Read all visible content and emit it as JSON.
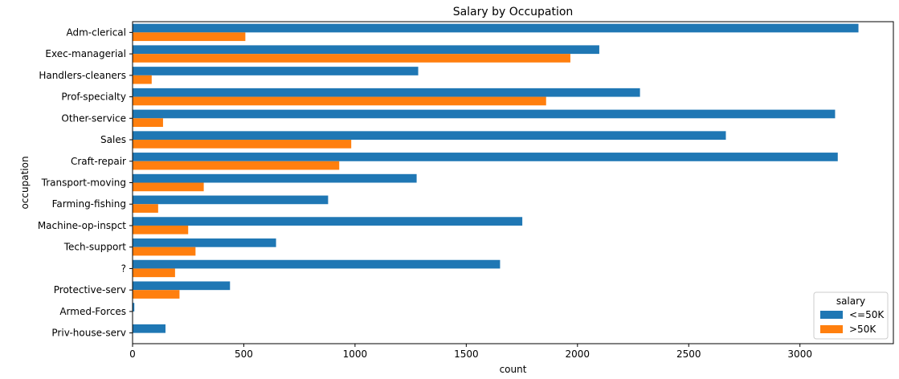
{
  "chart_data": {
    "type": "bar",
    "orientation": "horizontal",
    "title": "Salary by Occupation",
    "xlabel": "count",
    "ylabel": "occupation",
    "xlim": [
      0,
      3420
    ],
    "xticks": [
      0,
      500,
      1000,
      1500,
      2000,
      2500,
      3000
    ],
    "categories": [
      "Adm-clerical",
      "Exec-managerial",
      "Handlers-cleaners",
      "Prof-specialty",
      "Other-service",
      "Sales",
      "Craft-repair",
      "Transport-moving",
      "Farming-fishing",
      "Machine-op-inspct",
      "Tech-support",
      "?",
      "Protective-serv",
      "Armed-Forces",
      "Priv-house-serv"
    ],
    "series": [
      {
        "name": "<=50K",
        "color": "#1f77b4",
        "values": [
          3263,
          2098,
          1284,
          2281,
          3158,
          2667,
          3170,
          1277,
          879,
          1752,
          645,
          1652,
          438,
          8,
          148
        ]
      },
      {
        "name": ">50K",
        "color": "#ff7f0e",
        "values": [
          507,
          1968,
          86,
          1859,
          137,
          983,
          929,
          320,
          115,
          250,
          283,
          191,
          211,
          1,
          1
        ]
      }
    ],
    "legend": {
      "title": "salary",
      "placement": "lower-right"
    },
    "grid": false
  }
}
